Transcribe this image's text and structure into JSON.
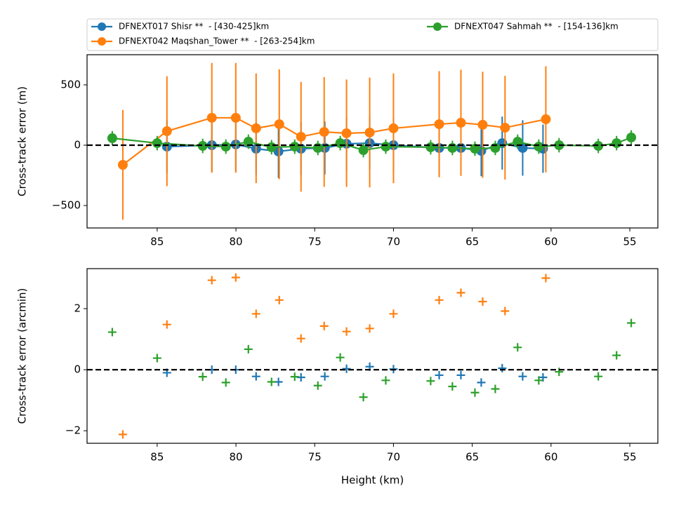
{
  "chart_data": [
    {
      "type": "errorbar",
      "ylabel": "Cross-track error (m)",
      "xlim": [
        89.45,
        53.22
      ],
      "ylim": [
        -686,
        750
      ],
      "xticks": [
        85,
        80,
        75,
        70,
        65,
        60,
        55
      ],
      "yticks": [
        500,
        0,
        {
          "value": -500,
          "label": "−500"
        }
      ],
      "reference_line": {
        "value": 0,
        "color": "#000000",
        "dashed": true
      },
      "legend": "top",
      "legend_columns": 2,
      "series": [
        {
          "name": "DFNEXT017 Shisr **  - [430-425]km",
          "color": "#1f77b4",
          "x": [
            84.38,
            81.53,
            80.01,
            78.72,
            77.3,
            75.87,
            74.36,
            72.98,
            71.51,
            70.0,
            67.1,
            65.72,
            64.43,
            63.1,
            61.8,
            60.51
          ],
          "values": [
            -12,
            0,
            6,
            -29,
            -52,
            -29,
            -23,
            12,
            17,
            0,
            -23,
            -23,
            -47,
            17,
            -23,
            -29
          ],
          "errors": [
            220,
            220,
            220,
            220,
            220,
            220,
            220,
            220,
            220,
            220,
            220,
            220,
            210,
            220,
            230,
            200
          ]
        },
        {
          "name": "DFNEXT042 Maqshan_Tower **  - [263-254]km",
          "color": "#ff7f0e",
          "x": [
            87.18,
            84.38,
            81.53,
            80.01,
            78.72,
            77.25,
            75.87,
            74.4,
            72.98,
            71.51,
            70.0,
            67.1,
            65.72,
            64.34,
            62.92,
            60.33
          ],
          "values": [
            -163,
            116,
            227,
            227,
            140,
            174,
            70,
            110,
            99,
            105,
            140,
            174,
            186,
            169,
            145,
            215
          ],
          "errors": [
            455,
            455,
            455,
            455,
            455,
            455,
            455,
            455,
            445,
            455,
            455,
            440,
            440,
            440,
            430,
            440
          ]
        },
        {
          "name": "DFNEXT047 Sahmah **  - [154-136]km",
          "color": "#2ca02c",
          "x": [
            87.85,
            85.0,
            82.11,
            80.64,
            79.21,
            77.74,
            76.27,
            74.8,
            73.38,
            71.91,
            70.49,
            67.64,
            66.26,
            64.83,
            63.54,
            62.12,
            60.78,
            59.49,
            57.0,
            55.84,
            54.91
          ],
          "values": [
            58,
            17,
            -6,
            -12,
            29,
            -17,
            -12,
            -23,
            17,
            -41,
            -12,
            -17,
            -23,
            -29,
            -23,
            29,
            -12,
            0,
            -6,
            17,
            64
          ],
          "errors": [
            60,
            60,
            60,
            60,
            60,
            60,
            60,
            60,
            60,
            60,
            60,
            60,
            60,
            60,
            60,
            60,
            60,
            60,
            60,
            60,
            60
          ]
        }
      ]
    },
    {
      "type": "scatter",
      "ylabel": "Cross-track error (arcmin)",
      "xlabel": "Height (km)",
      "xlim": [
        89.45,
        53.22
      ],
      "ylim": [
        -2.41,
        3.31
      ],
      "xticks": [
        85,
        80,
        75,
        70,
        65,
        60,
        55
      ],
      "yticks": [
        2,
        0,
        {
          "value": -2,
          "label": "−2"
        }
      ],
      "reference_line": {
        "value": 0,
        "color": "#000000",
        "dashed": true
      },
      "marker": "+",
      "series": [
        {
          "color": "#1f77b4",
          "x": [
            84.38,
            81.53,
            80.01,
            78.72,
            77.3,
            75.87,
            74.36,
            72.98,
            71.51,
            70.0,
            67.1,
            65.72,
            64.43,
            63.1,
            61.8,
            60.51
          ],
          "values": [
            -0.1,
            0.0,
            0.0,
            -0.22,
            -0.4,
            -0.25,
            -0.22,
            0.03,
            0.1,
            0.02,
            -0.18,
            -0.18,
            -0.42,
            0.05,
            -0.22,
            -0.25
          ]
        },
        {
          "color": "#ff7f0e",
          "x": [
            87.18,
            84.38,
            81.53,
            80.01,
            78.72,
            77.25,
            75.87,
            74.4,
            72.98,
            71.51,
            70.0,
            67.1,
            65.72,
            64.34,
            62.92,
            60.33
          ],
          "values": [
            -2.12,
            1.48,
            2.93,
            3.02,
            1.83,
            2.28,
            1.02,
            1.43,
            1.25,
            1.35,
            1.83,
            2.28,
            2.52,
            2.23,
            1.92,
            3.0
          ]
        },
        {
          "color": "#2ca02c",
          "x": [
            87.85,
            85.0,
            82.11,
            80.64,
            79.21,
            77.74,
            76.27,
            74.8,
            73.38,
            71.91,
            70.49,
            67.64,
            66.26,
            64.83,
            63.54,
            62.12,
            60.78,
            59.49,
            57.0,
            55.84,
            54.91
          ],
          "values": [
            1.23,
            0.38,
            -0.23,
            -0.42,
            0.67,
            -0.4,
            -0.23,
            -0.52,
            0.4,
            -0.9,
            -0.35,
            -0.37,
            -0.55,
            -0.75,
            -0.63,
            0.73,
            -0.35,
            -0.07,
            -0.22,
            0.47,
            1.53
          ]
        }
      ]
    }
  ]
}
